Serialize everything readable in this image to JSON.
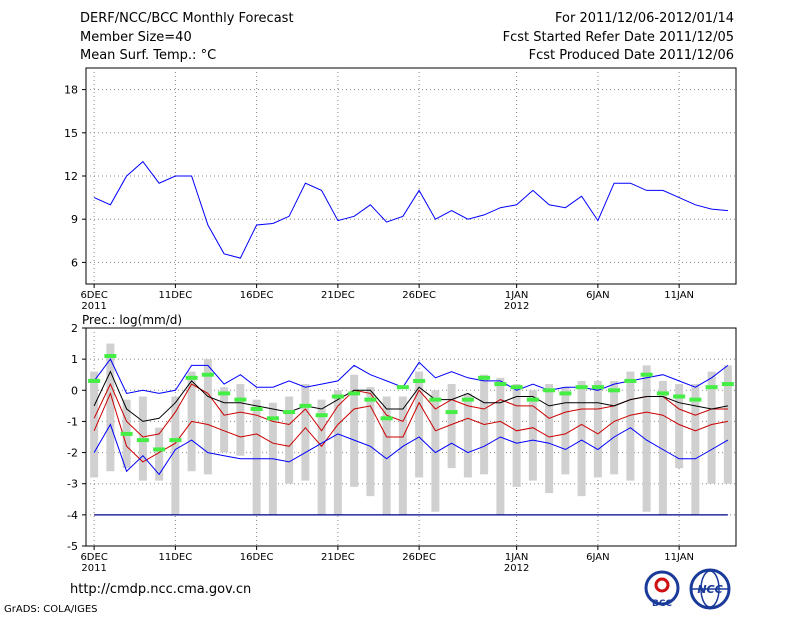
{
  "header": {
    "title": "DERF/NCC/BCC Monthly Forecast",
    "member_size": "Member Size=40",
    "variable": "Mean Surf. Temp.: °C",
    "period": "For 2011/12/06-2012/01/14",
    "refer_date": "Fcst Started Refer Date 2011/12/05",
    "produced_date": "Fcst Produced Date 2011/12/06"
  },
  "footer": {
    "url": "http://cmdp.ncc.cma.gov.cn",
    "credit": "GrADS: COLA/IGES"
  },
  "logos": {
    "bcc": "BCC",
    "ncc": "NCC"
  },
  "colors": {
    "max_min": "#0000ff",
    "spread": "#cc0000",
    "mean": "#000000",
    "obs": "#44ee44",
    "bars": "#d0d0d0",
    "base": "#00008b"
  },
  "chart_data": [
    {
      "type": "line",
      "title": "Mean Surf. Temp.: °C",
      "ylim": [
        4.5,
        19.5
      ],
      "yticks": [
        "6",
        "9",
        "12",
        "15",
        "18"
      ],
      "xticks": [
        {
          "day": 0,
          "label": "6DEC",
          "sub": "2011"
        },
        {
          "day": 5,
          "label": "11DEC",
          "sub": ""
        },
        {
          "day": 10,
          "label": "16DEC",
          "sub": ""
        },
        {
          "day": 15,
          "label": "21DEC",
          "sub": ""
        },
        {
          "day": 20,
          "label": "26DEC",
          "sub": ""
        },
        {
          "day": 26,
          "label": "1JAN",
          "sub": "2012"
        },
        {
          "day": 31,
          "label": "6JAN",
          "sub": ""
        },
        {
          "day": 36,
          "label": "11JAN",
          "sub": ""
        }
      ],
      "x_range": [
        -0.5,
        39.5
      ],
      "series": [
        {
          "name": "max",
          "values": [
            10.5,
            10,
            12,
            13,
            11.5,
            12,
            12,
            8.6,
            6.6,
            6.3,
            8.6,
            8.7,
            9.2,
            11.5,
            11,
            8.9,
            9.2,
            10,
            8.8,
            9.2,
            11,
            9,
            9.6,
            9,
            9.3,
            9.8,
            10,
            11,
            10,
            9.8,
            10.6,
            8.9,
            11.5,
            11.5,
            11,
            11,
            10.5,
            10,
            9.7,
            9.6
          ]
        }
      ]
    },
    {
      "type": "line",
      "title": "Prec.: log(mm/d)",
      "ylim": [
        -5,
        2
      ],
      "yticks": [
        "-5",
        "-4",
        "-3",
        "-2",
        "-1",
        "0",
        "1",
        "2"
      ],
      "xticks": [
        {
          "day": 0,
          "label": "6DEC",
          "sub": "2011"
        },
        {
          "day": 5,
          "label": "11DEC",
          "sub": ""
        },
        {
          "day": 10,
          "label": "16DEC",
          "sub": ""
        },
        {
          "day": 15,
          "label": "21DEC",
          "sub": ""
        },
        {
          "day": 20,
          "label": "26DEC",
          "sub": ""
        },
        {
          "day": 26,
          "label": "1JAN",
          "sub": "2012"
        },
        {
          "day": 31,
          "label": "6JAN",
          "sub": ""
        },
        {
          "day": 36,
          "label": "11JAN",
          "sub": ""
        }
      ],
      "x_range": [
        -0.5,
        39.5
      ],
      "series": [
        {
          "name": "max",
          "values": [
            0.3,
            1.0,
            -0.1,
            0,
            -0.1,
            0,
            0.8,
            0.8,
            0.2,
            0.5,
            0.1,
            0.1,
            0.3,
            0.1,
            0.2,
            0.3,
            0.8,
            0.5,
            0.3,
            0.1,
            0.9,
            0.4,
            0.6,
            0.4,
            0.3,
            0.3,
            0,
            0.2,
            0,
            0.1,
            0.1,
            0,
            0.2,
            0.3,
            0.4,
            0.5,
            0.3,
            0.1,
            0.4,
            0.8
          ]
        },
        {
          "name": "upper",
          "values": [
            -0.9,
            0.2,
            -1,
            -1.5,
            -1.4,
            -0.7,
            0.2,
            -0.1,
            -0.8,
            -0.7,
            -0.8,
            -1,
            -1.1,
            -0.6,
            -1.3,
            -0.5,
            0,
            -0.1,
            -0.8,
            -1,
            0,
            -0.6,
            -0.3,
            -0.5,
            -0.6,
            -0.3,
            -0.5,
            -0.5,
            -0.9,
            -0.7,
            -0.6,
            -0.6,
            -0.5,
            -0.3,
            -0.2,
            -0.2,
            -0.6,
            -0.8,
            -0.6,
            -0.6
          ]
        },
        {
          "name": "mean",
          "values": [
            -0.5,
            0.6,
            -0.6,
            -1.0,
            -0.9,
            -0.4,
            0.3,
            -0.2,
            -0.4,
            -0.4,
            -0.5,
            -0.6,
            -0.7,
            -0.5,
            -0.6,
            -0.3,
            0.0,
            0.0,
            -0.6,
            -0.6,
            0.1,
            -0.3,
            -0.3,
            -0.1,
            -0.4,
            -0.4,
            -0.2,
            -0.2,
            -0.5,
            -0.4,
            -0.4,
            -0.4,
            -0.5,
            -0.3,
            -0.2,
            -0.2,
            -0.4,
            -0.5,
            -0.6,
            -0.5
          ]
        },
        {
          "name": "lower",
          "values": [
            -1.3,
            -0.1,
            -1.8,
            -2.3,
            -2,
            -1.7,
            -1,
            -1.1,
            -1.3,
            -1.5,
            -1.4,
            -1.7,
            -1.8,
            -1.2,
            -1.8,
            -1.1,
            -0.6,
            -0.5,
            -1.5,
            -1.5,
            -0.4,
            -1.3,
            -1.1,
            -0.9,
            -1.1,
            -1,
            -1.3,
            -1.2,
            -1.5,
            -1.4,
            -1.1,
            -1.4,
            -1,
            -0.8,
            -0.7,
            -0.8,
            -1.1,
            -1.3,
            -1.1,
            -1
          ]
        },
        {
          "name": "min",
          "values": [
            -2,
            -1.1,
            -2.6,
            -2.1,
            -2.7,
            -1.9,
            -1.6,
            -2,
            -2.1,
            -2.2,
            -2.2,
            -2.2,
            -2.3,
            -2,
            -1.7,
            -1.4,
            -1.6,
            -1.8,
            -2.2,
            -1.8,
            -1.5,
            -2,
            -1.7,
            -2,
            -1.8,
            -1.5,
            -1.7,
            -1.6,
            -1.7,
            -1.9,
            -1.6,
            -1.9,
            -1.5,
            -1.2,
            -1.6,
            -1.9,
            -2.2,
            -2.2,
            -1.9,
            -1.6
          ]
        }
      ],
      "observed": [
        0.3,
        1.1,
        -1.4,
        -1.6,
        -1.9,
        -1.6,
        0.4,
        0.5,
        -0.1,
        -0.3,
        -0.6,
        -0.9,
        -0.7,
        -0.5,
        -0.8,
        -0.2,
        -0.1,
        -0.3,
        -0.9,
        0.1,
        0.3,
        -0.3,
        -0.7,
        -0.3,
        0.4,
        0.2,
        0.1,
        -0.3,
        0.0,
        -0.1,
        0.1,
        0.1,
        0.0,
        0.3,
        0.5,
        -0.1,
        -0.2,
        -0.3,
        0.1,
        0.2
      ],
      "bar_top": [
        0.6,
        1.5,
        -0.3,
        -0.2,
        -1.2,
        -0.2,
        0.6,
        1.0,
        0.1,
        0.2,
        -0.3,
        -0.4,
        -0.2,
        0.2,
        -0.3,
        0.0,
        0.5,
        0.1,
        -0.2,
        -0.2,
        0.6,
        0.0,
        0.2,
        -0.1,
        0.5,
        0.4,
        0.2,
        0.0,
        0.2,
        0.1,
        0.3,
        0.3,
        0.3,
        0.6,
        0.8,
        0.3,
        0.2,
        0.2,
        0.6,
        0.8
      ],
      "bar_bottom": [
        -2.8,
        -2.6,
        -2.5,
        -2.9,
        -2.9,
        -4,
        -2.6,
        -2.7,
        -2,
        -2.1,
        -4,
        -4,
        -3,
        -2.9,
        -4,
        -4,
        -3.1,
        -3.4,
        -4,
        -4,
        -2.8,
        -3.9,
        -2.5,
        -2.8,
        -2.7,
        -4,
        -3.1,
        -2.9,
        -3.3,
        -2.7,
        -3.4,
        -2.8,
        -2.7,
        -2.9,
        -3.9,
        -4,
        -2.5,
        -4,
        -3,
        -3
      ],
      "baseline": -4
    }
  ]
}
